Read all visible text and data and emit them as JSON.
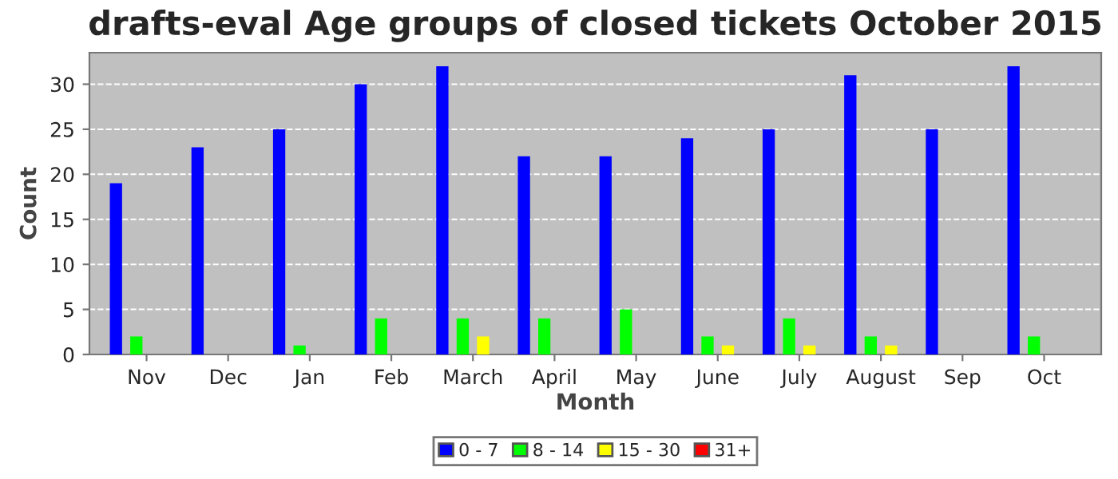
{
  "chart_data": {
    "type": "bar",
    "title": "drafts-eval Age groups of closed tickets October 2015",
    "xlabel": "Month",
    "ylabel": "Count",
    "categories": [
      "Nov",
      "Dec",
      "Jan",
      "Feb",
      "March",
      "April",
      "May",
      "June",
      "July",
      "August",
      "Sep",
      "Oct"
    ],
    "series": [
      {
        "name": "0 - 7",
        "color": "#0000ff",
        "values": [
          19,
          23,
          25,
          30,
          32,
          22,
          22,
          24,
          25,
          31,
          25,
          32
        ]
      },
      {
        "name": "8 - 14",
        "color": "#00ff00",
        "values": [
          2,
          0,
          1,
          4,
          4,
          4,
          5,
          2,
          4,
          2,
          0,
          2
        ]
      },
      {
        "name": "15 - 30",
        "color": "#ffff00",
        "values": [
          0,
          0,
          0,
          0,
          2,
          0,
          0,
          1,
          1,
          1,
          0,
          0
        ]
      },
      {
        "name": "31+",
        "color": "#ff0000",
        "values": [
          0,
          0,
          0,
          0,
          0,
          0,
          0,
          0,
          0,
          0,
          0,
          0
        ]
      }
    ],
    "ylim": [
      0,
      33.5
    ],
    "yticks": [
      0,
      5,
      10,
      15,
      20,
      25,
      30
    ],
    "grid": "y",
    "legend": "bottom"
  }
}
